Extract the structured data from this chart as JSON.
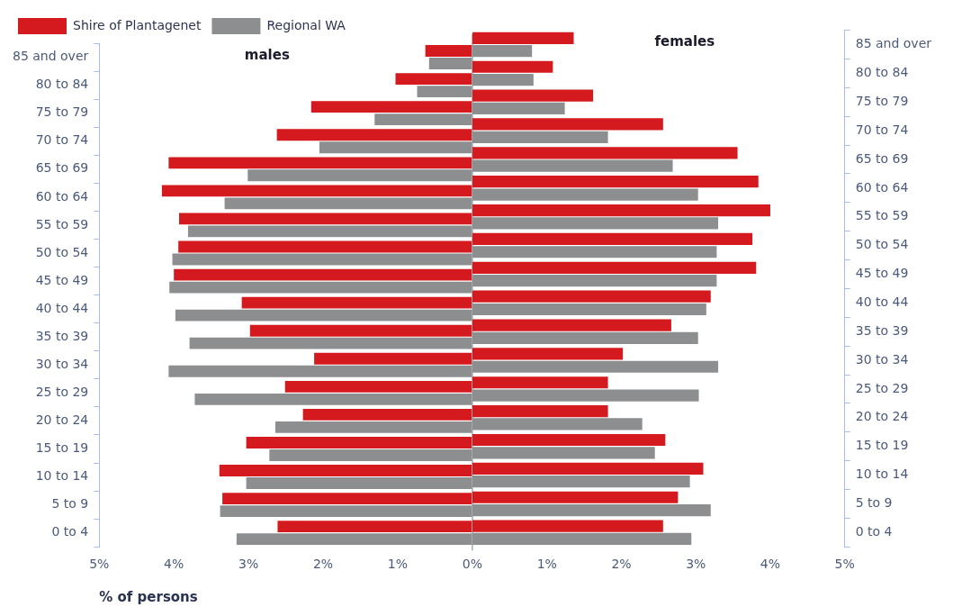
{
  "chart_data": [
    {
      "type": "bar",
      "orientation": "horizontal",
      "xlabel": "% of persons",
      "legend": "top left",
      "grid": false,
      "categories": [
        "85 and over",
        "80 to 84",
        "75 to 79",
        "70 to 74",
        "65 to 69",
        "60 to 64",
        "55 to 59",
        "50 to 54",
        "45 to 49",
        "40 to 44",
        "35 to 39",
        "30 to 34",
        "25 to 29",
        "20 to 24",
        "15 to 19",
        "10 to 14",
        "5 to 9",
        "0 to 4"
      ],
      "series": [
        {
          "name": "Shire of Plantagenet",
          "color": "#d41a1f",
          "values": [
            0.63,
            1.03,
            2.16,
            2.62,
            4.07,
            4.16,
            3.93,
            3.94,
            4.0,
            3.09,
            2.98,
            2.12,
            2.51,
            2.27,
            3.03,
            3.39,
            3.35,
            2.61
          ]
        },
        {
          "name": "Regional WA",
          "color": "#8d8e90",
          "values": [
            0.58,
            0.74,
            1.31,
            2.05,
            3.01,
            3.32,
            3.81,
            4.02,
            4.06,
            3.98,
            3.79,
            4.07,
            3.72,
            2.64,
            2.72,
            3.03,
            3.38,
            3.16
          ]
        }
      ],
      "xlim": [
        5,
        0
      ],
      "xticks": [
        {
          "value": 5,
          "label": "5%"
        },
        {
          "value": 4,
          "label": "4%"
        },
        {
          "value": 3,
          "label": "3%"
        },
        {
          "value": 2,
          "label": "2%"
        },
        {
          "value": 1,
          "label": "1%"
        },
        {
          "value": 0,
          "label": "0%"
        }
      ],
      "ref_lines": [
        {
          "axis": "x",
          "value": 0,
          "color": "#a8aab4"
        }
      ],
      "annotations": [
        "males"
      ]
    },
    {
      "type": "bar",
      "orientation": "horizontal",
      "grid": false,
      "categories": [
        "85 and over",
        "80 to 84",
        "75 to 79",
        "70 to 74",
        "65 to 69",
        "60 to 64",
        "55 to 59",
        "50 to 54",
        "45 to 49",
        "40 to 44",
        "35 to 39",
        "30 to 34",
        "25 to 29",
        "20 to 24",
        "15 to 19",
        "10 to 14",
        "5 to 9",
        "0 to 4"
      ],
      "series": [
        {
          "color": "#d41a1f",
          "values": [
            1.36,
            1.08,
            1.62,
            2.56,
            3.56,
            3.84,
            4.0,
            3.76,
            3.81,
            3.2,
            2.67,
            2.02,
            1.82,
            1.82,
            2.59,
            3.1,
            2.76,
            2.56
          ]
        },
        {
          "color": "#8d8e90",
          "values": [
            0.8,
            0.82,
            1.24,
            1.82,
            2.69,
            3.03,
            3.3,
            3.28,
            3.28,
            3.14,
            3.03,
            3.3,
            3.04,
            2.28,
            2.45,
            2.92,
            3.2,
            2.94
          ]
        }
      ],
      "xlim": [
        0,
        5
      ],
      "xticks": [
        {
          "value": 1,
          "label": "1%"
        },
        {
          "value": 2,
          "label": "2%"
        },
        {
          "value": 3,
          "label": "3%"
        },
        {
          "value": 4,
          "label": "4%"
        },
        {
          "value": 5,
          "label": "5%"
        }
      ],
      "annotations": [
        "females"
      ]
    }
  ]
}
